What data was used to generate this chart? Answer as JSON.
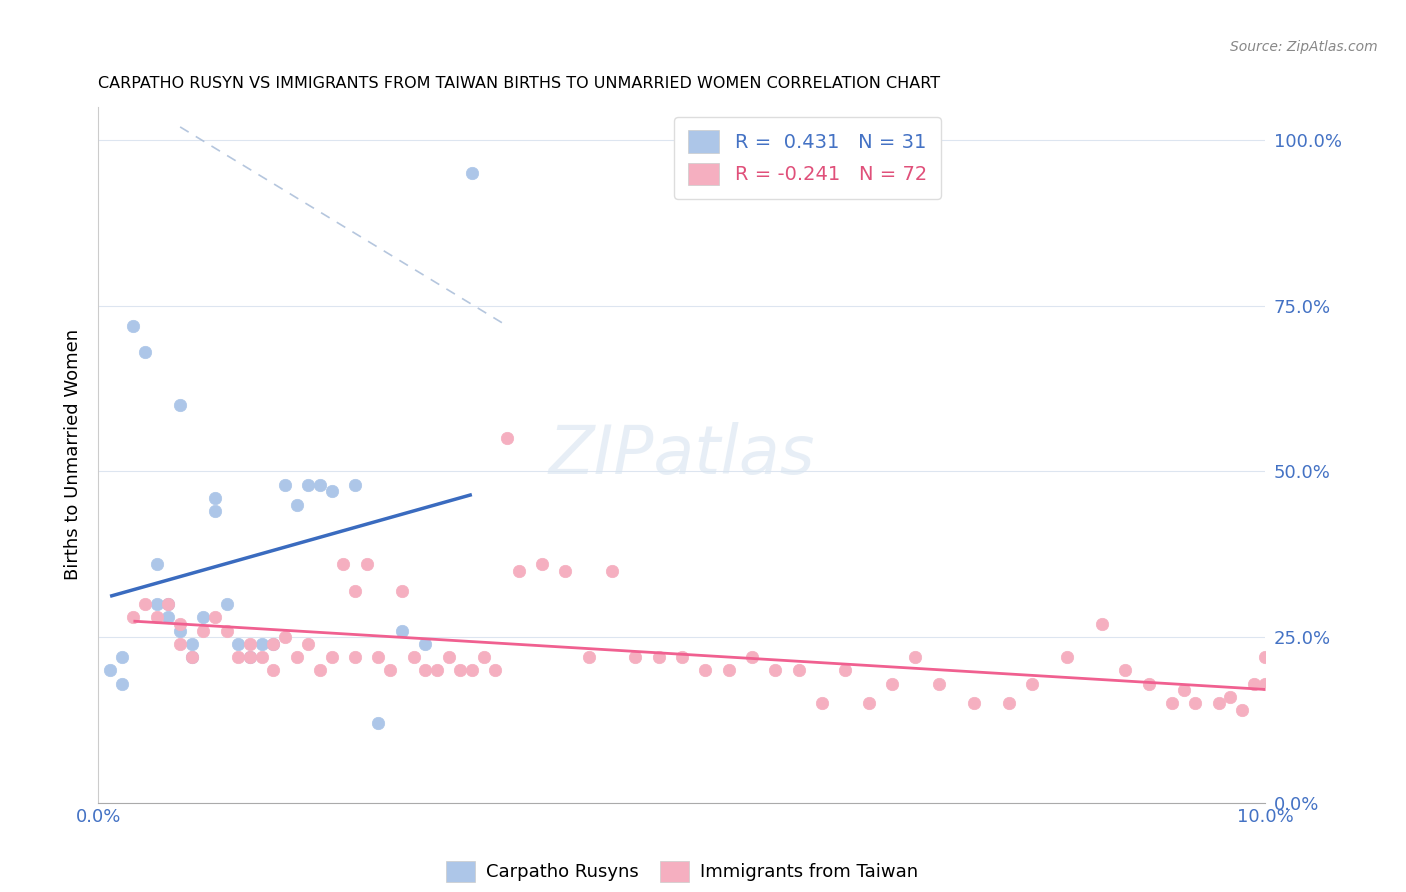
{
  "title": "CARPATHO RUSYN VS IMMIGRANTS FROM TAIWAN BIRTHS TO UNMARRIED WOMEN CORRELATION CHART",
  "source": "Source: ZipAtlas.com",
  "ylabel": "Births to Unmarried Women",
  "legend_blue": "R =  0.431   N = 31",
  "legend_pink": "R = -0.241   N = 72",
  "legend_label_blue": "Carpatho Rusyns",
  "legend_label_pink": "Immigrants from Taiwan",
  "blue_dot_color": "#adc6e8",
  "pink_dot_color": "#f5afc0",
  "blue_line_color": "#3a6bbf",
  "pink_line_color": "#f06090",
  "diag_line_color": "#a8bcd8",
  "grid_color": "#dde5f0",
  "blue_x": [
    0.001,
    0.002,
    0.002,
    0.003,
    0.004,
    0.005,
    0.005,
    0.006,
    0.006,
    0.007,
    0.007,
    0.008,
    0.008,
    0.009,
    0.01,
    0.01,
    0.011,
    0.012,
    0.013,
    0.014,
    0.015,
    0.016,
    0.017,
    0.018,
    0.019,
    0.02,
    0.022,
    0.024,
    0.026,
    0.028,
    0.032
  ],
  "blue_y": [
    0.2,
    0.18,
    0.22,
    0.72,
    0.68,
    0.3,
    0.36,
    0.3,
    0.28,
    0.26,
    0.6,
    0.24,
    0.22,
    0.28,
    0.46,
    0.44,
    0.3,
    0.24,
    0.22,
    0.24,
    0.24,
    0.48,
    0.45,
    0.48,
    0.48,
    0.47,
    0.48,
    0.12,
    0.26,
    0.24,
    0.95
  ],
  "pink_x": [
    0.003,
    0.004,
    0.005,
    0.006,
    0.007,
    0.007,
    0.008,
    0.009,
    0.01,
    0.011,
    0.012,
    0.013,
    0.013,
    0.014,
    0.015,
    0.015,
    0.016,
    0.017,
    0.018,
    0.019,
    0.02,
    0.021,
    0.022,
    0.022,
    0.023,
    0.024,
    0.025,
    0.026,
    0.027,
    0.028,
    0.029,
    0.03,
    0.031,
    0.032,
    0.033,
    0.034,
    0.035,
    0.036,
    0.038,
    0.04,
    0.042,
    0.044,
    0.046,
    0.048,
    0.05,
    0.052,
    0.054,
    0.056,
    0.058,
    0.06,
    0.062,
    0.064,
    0.066,
    0.068,
    0.07,
    0.072,
    0.075,
    0.078,
    0.08,
    0.083,
    0.086,
    0.088,
    0.09,
    0.092,
    0.094,
    0.096,
    0.098,
    0.099,
    0.1,
    0.1,
    0.097,
    0.093
  ],
  "pink_y": [
    0.28,
    0.3,
    0.28,
    0.3,
    0.27,
    0.24,
    0.22,
    0.26,
    0.28,
    0.26,
    0.22,
    0.24,
    0.22,
    0.22,
    0.2,
    0.24,
    0.25,
    0.22,
    0.24,
    0.2,
    0.22,
    0.36,
    0.22,
    0.32,
    0.36,
    0.22,
    0.2,
    0.32,
    0.22,
    0.2,
    0.2,
    0.22,
    0.2,
    0.2,
    0.22,
    0.2,
    0.55,
    0.35,
    0.36,
    0.35,
    0.22,
    0.35,
    0.22,
    0.22,
    0.22,
    0.2,
    0.2,
    0.22,
    0.2,
    0.2,
    0.15,
    0.2,
    0.15,
    0.18,
    0.22,
    0.18,
    0.15,
    0.15,
    0.18,
    0.22,
    0.27,
    0.2,
    0.18,
    0.15,
    0.15,
    0.15,
    0.14,
    0.18,
    0.22,
    0.18,
    0.16,
    0.17
  ],
  "xlim": [
    0.0,
    0.1
  ],
  "ylim": [
    0.0,
    1.05
  ],
  "yticks": [
    0.0,
    0.25,
    0.5,
    0.75,
    1.0
  ],
  "ytick_labels_right": [
    "0.0%",
    "25.0%",
    "50.0%",
    "75.0%",
    "100.0%"
  ]
}
